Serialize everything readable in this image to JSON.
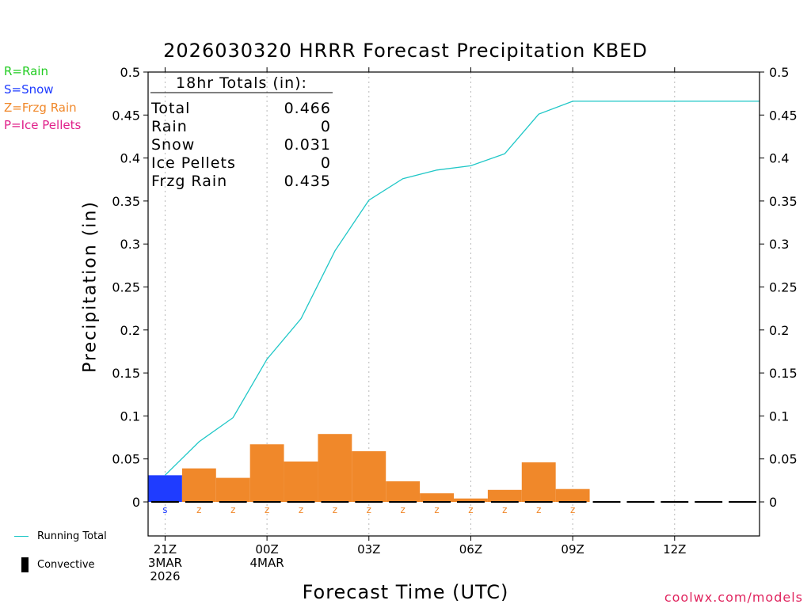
{
  "title": "2026030320 HRRR Forecast Precipitation KBED",
  "legend": {
    "rain": "R=Rain",
    "snow": "S=Snow",
    "frzg_rain": "Z=Frzg Rain",
    "ice_pellets": "P=Ice Pellets",
    "running_total": "Running Total",
    "convective": "Convective"
  },
  "colors": {
    "rain": "#22cc22",
    "snow": "#1f3cff",
    "frzg_rain": "#f0882a",
    "ice_pellets": "#e0208a",
    "running_total": "#1fc7c7",
    "credit": "#e0245e"
  },
  "totals": {
    "header": "18hr Totals (in):",
    "rows": [
      {
        "label": "Total",
        "value": "0.466"
      },
      {
        "label": "Rain",
        "value": "0"
      },
      {
        "label": "Snow",
        "value": "0.031"
      },
      {
        "label": "Ice Pellets",
        "value": "0"
      },
      {
        "label": "Frzg Rain",
        "value": "0.435"
      }
    ]
  },
  "xlabel": "Forecast Time (UTC)",
  "credit": "coolwx.com/models",
  "chart_data": {
    "type": "bar",
    "title": "2026030320 HRRR Forecast Precipitation KBED",
    "xlabel": "Forecast Time (UTC)",
    "ylabel": "Precipitation (in)",
    "ylim": [
      -0.05,
      0.5
    ],
    "yticks": [
      "0.5",
      "0.45",
      "0.4",
      "0.35",
      "0.3",
      "0.25",
      "0.2",
      "0.15",
      "0.1",
      "0.05",
      "0"
    ],
    "ytick_values": [
      0.5,
      0.45,
      0.4,
      0.35,
      0.3,
      0.25,
      0.2,
      0.15,
      0.1,
      0.05,
      0
    ],
    "x_start_hour": 20.5,
    "x_end_hour": 38.5,
    "xticks": [
      {
        "hour": 21,
        "lines": [
          "21Z",
          "3MAR",
          "2026"
        ]
      },
      {
        "hour": 24,
        "lines": [
          "00Z",
          "4MAR"
        ]
      },
      {
        "hour": 27,
        "lines": [
          "03Z"
        ]
      },
      {
        "hour": 30,
        "lines": [
          "06Z"
        ]
      },
      {
        "hour": 33,
        "lines": [
          "09Z"
        ]
      },
      {
        "hour": 36,
        "lines": [
          "12Z"
        ]
      }
    ],
    "hours": [
      21,
      22,
      23,
      24,
      25,
      26,
      27,
      28,
      29,
      30,
      31,
      32,
      33,
      34,
      35,
      36,
      37,
      38
    ],
    "hourly_precip": [
      0.031,
      0.039,
      0.028,
      0.067,
      0.047,
      0.079,
      0.059,
      0.024,
      0.01,
      0.004,
      0.014,
      0.046,
      0.015,
      0,
      0,
      0,
      0,
      0
    ],
    "precip_type": [
      "S",
      "Z",
      "Z",
      "Z",
      "Z",
      "Z",
      "Z",
      "Z",
      "Z",
      "Z",
      "Z",
      "Z",
      "Z",
      "",
      "",
      "",
      "",
      ""
    ],
    "running_total": {
      "name": "Running Total",
      "x": [
        21,
        22,
        23,
        24,
        25,
        26,
        27,
        28,
        29,
        30,
        31,
        32,
        33,
        34,
        35,
        36,
        37,
        38.5
      ],
      "values": [
        0.031,
        0.07,
        0.098,
        0.166,
        0.213,
        0.292,
        0.351,
        0.376,
        0.386,
        0.391,
        0.405,
        0.451,
        0.466,
        0.466,
        0.466,
        0.466,
        0.466,
        0.466
      ]
    }
  }
}
